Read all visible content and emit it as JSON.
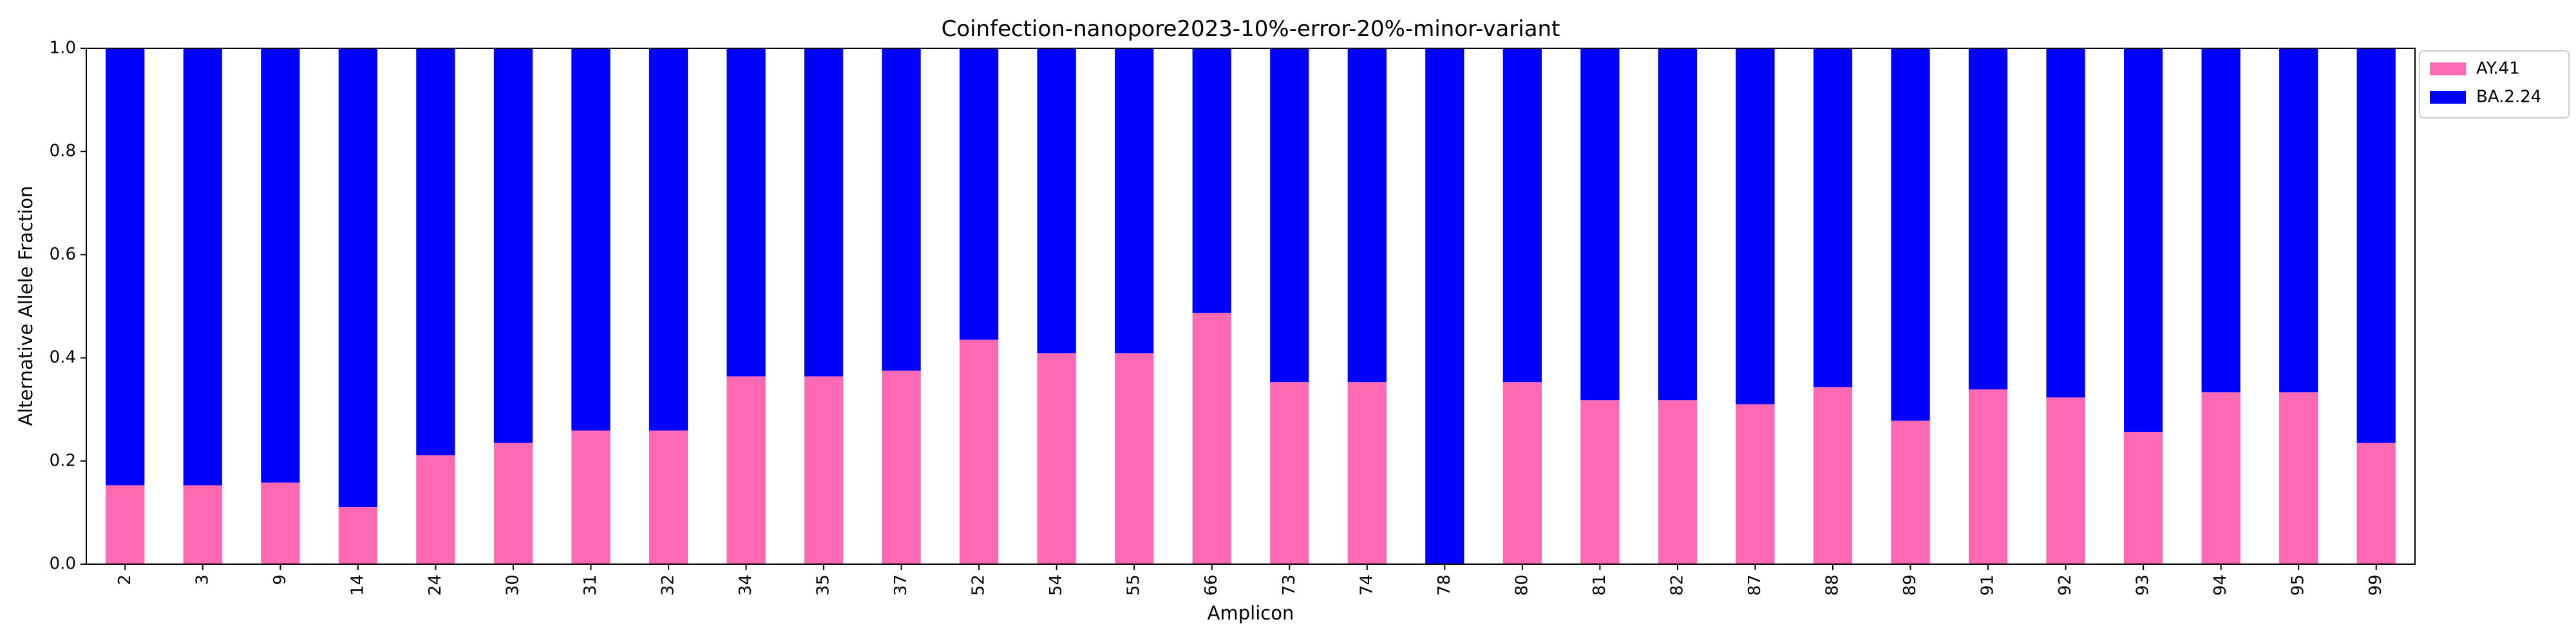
{
  "chart_data": {
    "type": "bar",
    "stacked": true,
    "title": "Coinfection-nanopore2023-10%-error-20%-minor-variant",
    "xlabel": "Amplicon",
    "ylabel": "Alternative Allele Fraction",
    "ylim": [
      0,
      1.0
    ],
    "yticks": [
      "0.0",
      "0.2",
      "0.4",
      "0.6",
      "0.8",
      "1.0"
    ],
    "grid": false,
    "legend_position": "outside-top-right",
    "categories": [
      "2",
      "3",
      "9",
      "14",
      "24",
      "30",
      "31",
      "32",
      "34",
      "35",
      "37",
      "52",
      "54",
      "55",
      "66",
      "73",
      "74",
      "78",
      "80",
      "81",
      "82",
      "87",
      "88",
      "89",
      "91",
      "92",
      "93",
      "94",
      "95",
      "99"
    ],
    "series": [
      {
        "name": "AY.41",
        "color": "#ff69b4",
        "values": [
          0.153,
          0.153,
          0.158,
          0.111,
          0.211,
          0.235,
          0.259,
          0.259,
          0.364,
          0.364,
          0.375,
          0.435,
          0.409,
          0.409,
          0.487,
          0.353,
          0.353,
          0.0,
          0.353,
          0.318,
          0.318,
          0.31,
          0.343,
          0.278,
          0.339,
          0.323,
          0.256,
          0.333,
          0.333,
          0.235
        ]
      },
      {
        "name": "BA.2.24",
        "color": "#0000ff",
        "values": [
          0.847,
          0.847,
          0.842,
          0.889,
          0.789,
          0.765,
          0.741,
          0.741,
          0.636,
          0.636,
          0.625,
          0.565,
          0.591,
          0.591,
          0.513,
          0.647,
          0.647,
          1.0,
          0.647,
          0.682,
          0.682,
          0.69,
          0.657,
          0.722,
          0.661,
          0.677,
          0.744,
          0.667,
          0.667,
          0.765
        ]
      }
    ]
  }
}
